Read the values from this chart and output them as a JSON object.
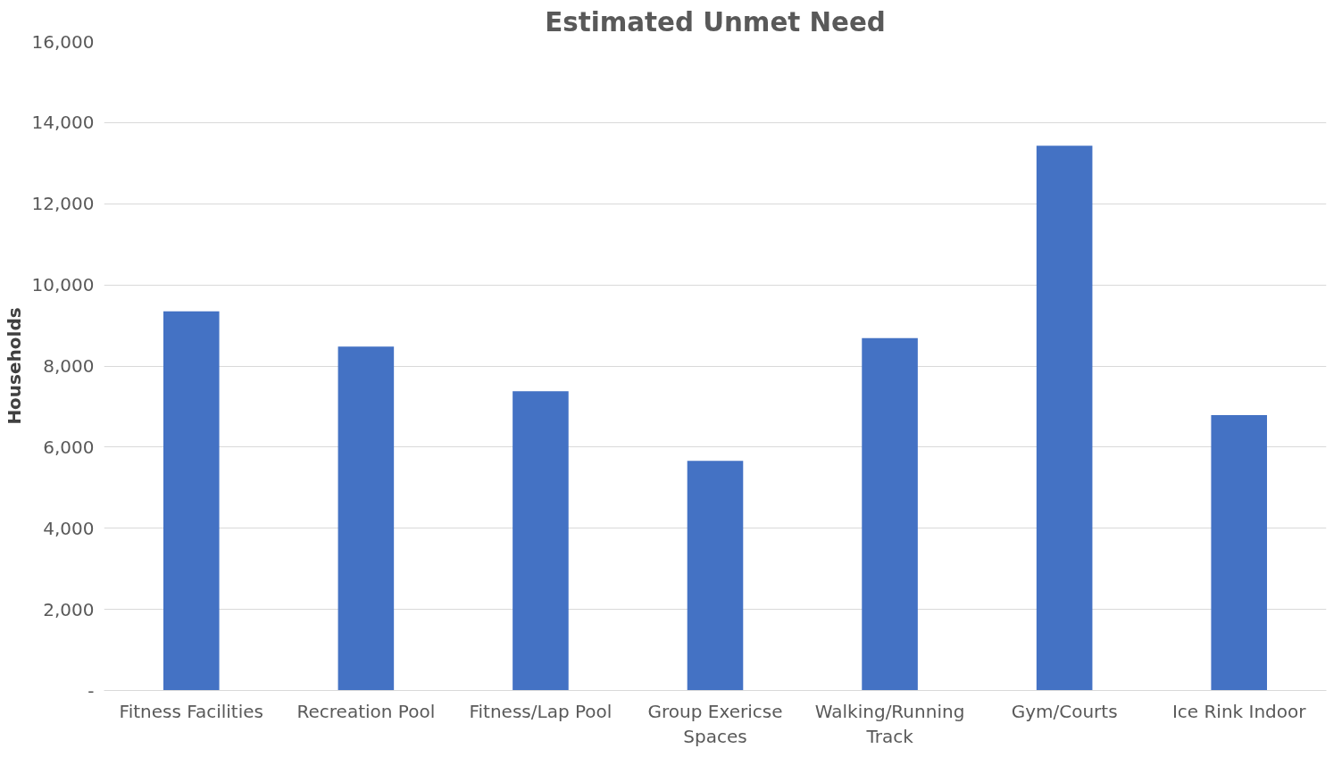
{
  "chart_data": {
    "type": "bar",
    "title": "Estimated Unmet Need",
    "ylabel": "Households",
    "categories": [
      "Fitness Facilities",
      "Recreation Pool",
      "Fitness/Lap Pool",
      "Group Exericse Spaces",
      "Walking/Running Track",
      "Gym/Courts",
      "Ice Rink Indoor"
    ],
    "values": [
      9350,
      8480,
      7380,
      5660,
      8690,
      13430,
      6790
    ],
    "color": "#4472c4",
    "ylim": [
      0,
      16000
    ],
    "yticks": [
      {
        "value": 0,
        "label": "-"
      },
      {
        "value": 2000,
        "label": "2,000"
      },
      {
        "value": 4000,
        "label": "4,000"
      },
      {
        "value": 6000,
        "label": "6,000"
      },
      {
        "value": 8000,
        "label": "8,000"
      },
      {
        "value": 10000,
        "label": "10,000"
      },
      {
        "value": 12000,
        "label": "12,000"
      },
      {
        "value": 14000,
        "label": "14,000"
      },
      {
        "value": 16000,
        "label": "16,000"
      }
    ],
    "grid": "y"
  }
}
